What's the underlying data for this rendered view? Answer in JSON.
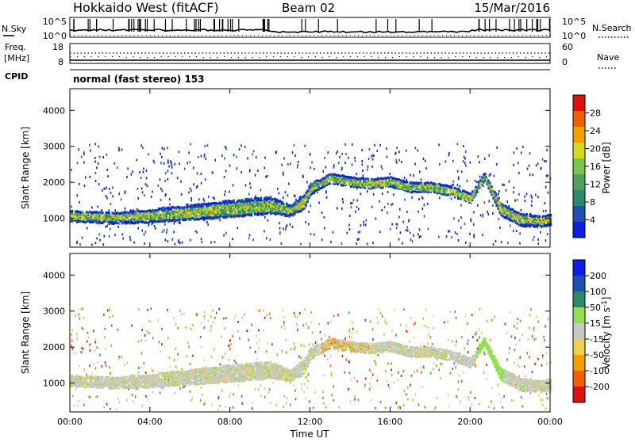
{
  "header": {
    "station": "Hokkaido West (fitACF)",
    "beam": "Beam 02",
    "date": "15/Mar/2016"
  },
  "noise_panel": {
    "left_label": "N.Sky",
    "left_ticks": [
      "10^5",
      "10^0"
    ],
    "right_label": "N.Search",
    "right_ticks": [
      "10^5",
      "10^0"
    ]
  },
  "freq_panel": {
    "left_label_line1": "Freq.",
    "left_label_line2": "[MHz]",
    "left_ticks": [
      "18",
      "8"
    ],
    "right_label": "Nave",
    "right_ticks": [
      "60",
      "0"
    ]
  },
  "cpid": {
    "label": "CPID",
    "value": "normal (fast stereo) 153"
  },
  "colors": {
    "power_scale": [
      "#0a1ee6",
      "#1e50b4",
      "#2a8a6a",
      "#4ea05a",
      "#78c850",
      "#d8d820",
      "#f0a000",
      "#f06000",
      "#e01010"
    ],
    "velocity_scale": [
      "#e01010",
      "#f06000",
      "#f0a000",
      "#f0d050",
      "#c8c8c8",
      "#90e050",
      "#2a8a6a",
      "#1e50b4",
      "#0a1ee6"
    ]
  },
  "chart_data": [
    {
      "type": "heatmap",
      "title": "Power",
      "xlabel": "",
      "ylabel": "Slant Range [km]",
      "x_ticks": [
        "00:00",
        "04:00",
        "08:00",
        "12:00",
        "16:00",
        "20:00",
        "00:00"
      ],
      "y_ticks": [
        "1000",
        "2000",
        "3000",
        "4000"
      ],
      "ylim": [
        200,
        4600
      ],
      "colorbar_label": "Power [dB]",
      "colorbar_ticks": [
        "4",
        "8",
        "12",
        "16",
        "20",
        "24",
        "28"
      ],
      "colorbar_range": [
        0,
        30
      ],
      "echo_band": {
        "time_h": [
          0,
          2,
          4,
          6,
          8,
          10,
          11,
          11.7,
          12,
          13,
          14,
          15,
          16,
          17,
          18,
          19,
          20,
          20.7,
          21.5,
          22.5,
          23.5,
          24
        ],
        "center_km": [
          1100,
          1050,
          1100,
          1200,
          1300,
          1400,
          1250,
          1500,
          1850,
          2150,
          2050,
          2000,
          2050,
          1900,
          1900,
          1800,
          1600,
          2200,
          1300,
          1000,
          950,
          1000
        ],
        "width_km": [
          300,
          300,
          350,
          400,
          450,
          450,
          300,
          400,
          300,
          250,
          250,
          250,
          250,
          250,
          250,
          250,
          250,
          200,
          350,
          350,
          300,
          300
        ]
      }
    },
    {
      "type": "heatmap",
      "title": "Velocity",
      "xlabel": "Time UT",
      "ylabel": "Slant Range [km]",
      "x_ticks": [
        "00:00",
        "04:00",
        "08:00",
        "12:00",
        "16:00",
        "20:00",
        "00:00"
      ],
      "y_ticks": [
        "1000",
        "2000",
        "3000",
        "4000"
      ],
      "ylim": [
        200,
        4600
      ],
      "colorbar_label": "Velocity [m s^-1]",
      "colorbar_ticks": [
        "200",
        "100",
        "50",
        "15",
        "-15",
        "-50",
        "-100",
        "-200"
      ],
      "colorbar_range": [
        -250,
        250
      ]
    }
  ]
}
